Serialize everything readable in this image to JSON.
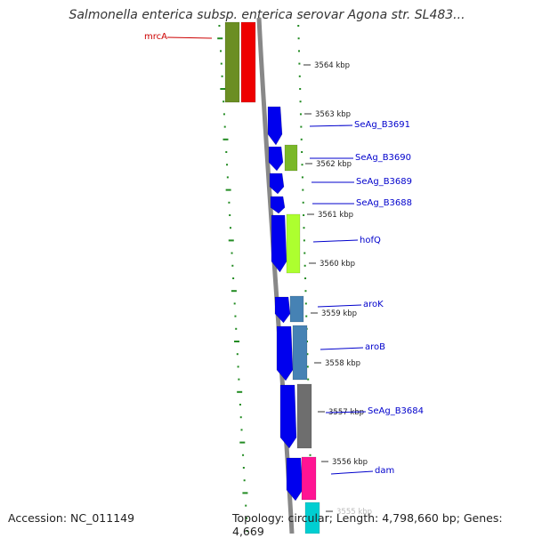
{
  "title": "Salmonella enterica subsp. enterica serovar Agona str. SL483...",
  "accession": "Accession: NC_011149",
  "topology": "Topology: circular; Length: 4,798,660 bp; Genes: 4,669",
  "colors": {
    "forward_feature": "#0000ee",
    "mrcA_olive": "#6b8e23",
    "mrcA_red": "#ee0000",
    "b3690_green": "#7ab828",
    "hofQ_yellowgreen": "#adff2f",
    "aroK_steelblue": "#4682b4",
    "B3684_gray": "#6e6e6e",
    "dam_pink": "#ff1493",
    "next_cyan": "#00ced1",
    "label_blue": "#0000cc",
    "label_red": "#cc0000",
    "tick_green": "#228b22",
    "backbone": "#888888"
  },
  "scale": [
    {
      "label": "3564 kbp"
    },
    {
      "label": "3563 kbp"
    },
    {
      "label": "3562 kbp"
    },
    {
      "label": "3561 kbp"
    },
    {
      "label": "3560 kbp"
    },
    {
      "label": "3559 kbp"
    },
    {
      "label": "3558 kbp"
    },
    {
      "label": "3557 kbp"
    },
    {
      "label": "3556 kbp"
    },
    {
      "label": "3555 kbp"
    }
  ],
  "genes": [
    {
      "name": "mrcA",
      "strand": "reverse"
    },
    {
      "name": "SeAg_B3691",
      "strand": "forward"
    },
    {
      "name": "SeAg_B3690",
      "strand": "forward"
    },
    {
      "name": "SeAg_B3689",
      "strand": "forward"
    },
    {
      "name": "SeAg_B3688",
      "strand": "forward"
    },
    {
      "name": "hofQ",
      "strand": "forward"
    },
    {
      "name": "aroK",
      "strand": "forward"
    },
    {
      "name": "aroB",
      "strand": "forward"
    },
    {
      "name": "SeAg_B3684",
      "strand": "forward"
    },
    {
      "name": "dam",
      "strand": "forward"
    }
  ]
}
